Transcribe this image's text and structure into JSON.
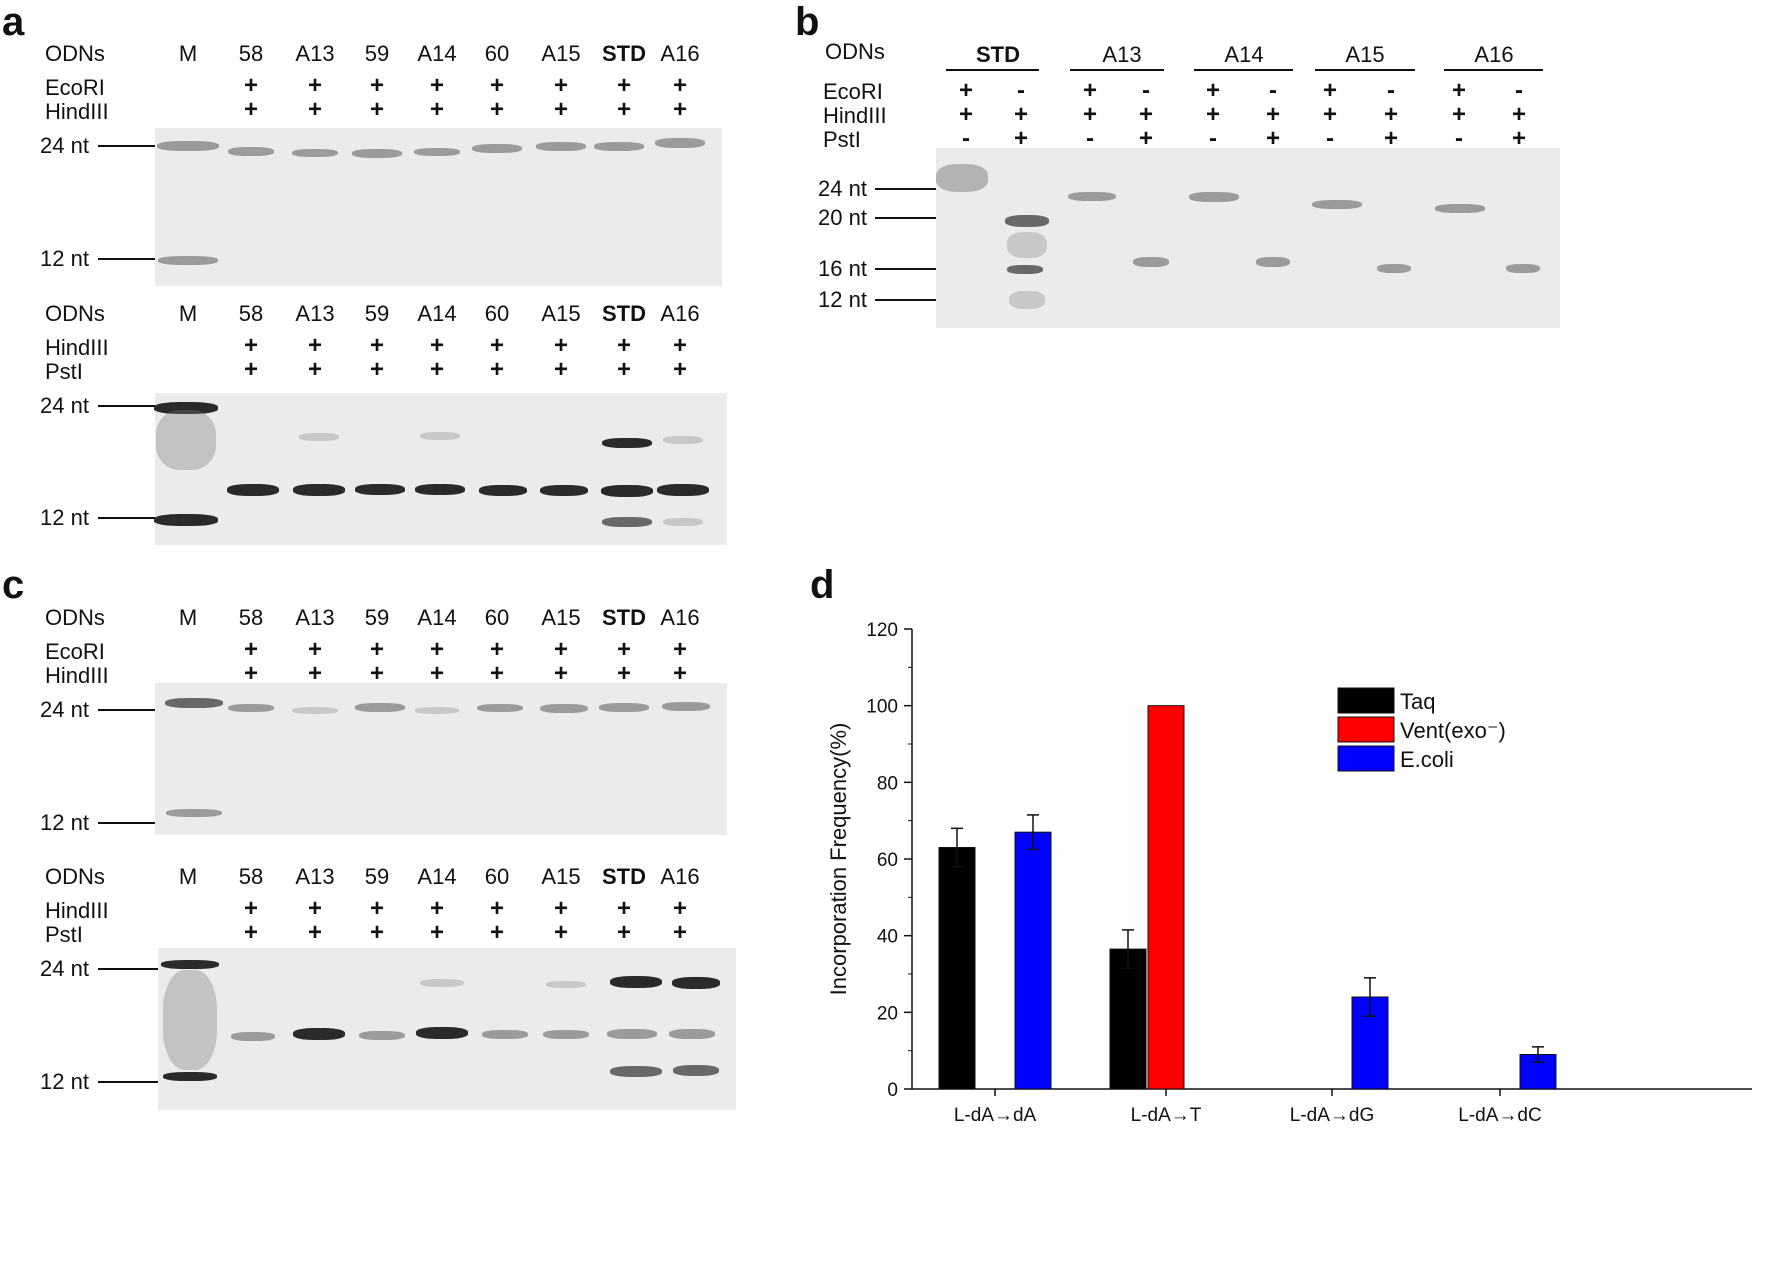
{
  "panel_labels": {
    "a": "a",
    "b": "b",
    "c": "c",
    "d": "d"
  },
  "gel_a_top": {
    "row_label": "ODNs",
    "lanes": [
      "M",
      "58",
      "A13",
      "59",
      "A14",
      "60",
      "A15",
      "STD",
      "A16"
    ],
    "enzymes": [
      {
        "name": "EcoRI",
        "signs": [
          "",
          "+",
          "+",
          "+",
          "+",
          "+",
          "+",
          "+",
          "+"
        ]
      },
      {
        "name": "HindIII",
        "signs": [
          "",
          "+",
          "+",
          "+",
          "+",
          "+",
          "+",
          "+",
          "+"
        ]
      }
    ],
    "markers": [
      "24 nt",
      "12 nt"
    ]
  },
  "gel_a_bottom": {
    "row_label": "ODNs",
    "lanes": [
      "M",
      "58",
      "A13",
      "59",
      "A14",
      "60",
      "A15",
      "STD",
      "A16"
    ],
    "enzymes": [
      {
        "name": "HindIII",
        "signs": [
          "",
          "+",
          "+",
          "+",
          "+",
          "+",
          "+",
          "+",
          "+"
        ]
      },
      {
        "name": "PstI",
        "signs": [
          "",
          "+",
          "+",
          "+",
          "+",
          "+",
          "+",
          "+",
          "+"
        ]
      }
    ],
    "markers": [
      "24 nt",
      "12 nt"
    ]
  },
  "gel_b": {
    "row_label": "ODNs",
    "groups": [
      "STD",
      "A13",
      "A14",
      "A15",
      "A16"
    ],
    "enzymes": [
      {
        "name": "EcoRI",
        "signs": [
          "+",
          "-",
          "+",
          "-",
          "+",
          "-",
          "+",
          "-",
          "+",
          "-"
        ]
      },
      {
        "name": "HindIII",
        "signs": [
          "+",
          "+",
          "+",
          "+",
          "+",
          "+",
          "+",
          "+",
          "+",
          "+"
        ]
      },
      {
        "name": "PstI",
        "signs": [
          "-",
          "+",
          "-",
          "+",
          "-",
          "+",
          "-",
          "+",
          "-",
          "+"
        ]
      }
    ],
    "markers": [
      "24 nt",
      "20 nt",
      "16 nt",
      "12 nt"
    ]
  },
  "gel_c_top": {
    "row_label": "ODNs",
    "lanes": [
      "M",
      "58",
      "A13",
      "59",
      "A14",
      "60",
      "A15",
      "STD",
      "A16"
    ],
    "enzymes": [
      {
        "name": "EcoRI",
        "signs": [
          "",
          "+",
          "+",
          "+",
          "+",
          "+",
          "+",
          "+",
          "+"
        ]
      },
      {
        "name": "HindIII",
        "signs": [
          "",
          "+",
          "+",
          "+",
          "+",
          "+",
          "+",
          "+",
          "+"
        ]
      }
    ],
    "markers": [
      "24 nt",
      "12 nt"
    ]
  },
  "gel_c_bottom": {
    "row_label": "ODNs",
    "lanes": [
      "M",
      "58",
      "A13",
      "59",
      "A14",
      "60",
      "A15",
      "STD",
      "A16"
    ],
    "enzymes": [
      {
        "name": "HindIII",
        "signs": [
          "",
          "+",
          "+",
          "+",
          "+",
          "+",
          "+",
          "+",
          "+"
        ]
      },
      {
        "name": "PstI",
        "signs": [
          "",
          "+",
          "+",
          "+",
          "+",
          "+",
          "+",
          "+",
          "+"
        ]
      }
    ],
    "markers": [
      "24 nt",
      "12 nt"
    ]
  },
  "chart_data": {
    "type": "bar",
    "categories": [
      "L-dA→dA",
      "L-dA→T",
      "L-dA→dG",
      "L-dA→dC"
    ],
    "series": [
      {
        "name": "Taq",
        "color": "#000000",
        "values": [
          63,
          36.5,
          0,
          0
        ],
        "errors": [
          5,
          5,
          0,
          0
        ]
      },
      {
        "name": "Vent(exo⁻)",
        "color": "#ff0000",
        "values": [
          0,
          100,
          0,
          0
        ],
        "errors": [
          0,
          0,
          0,
          0
        ]
      },
      {
        "name": "E.coli",
        "color": "#0000ff",
        "values": [
          67,
          0,
          24,
          9
        ],
        "errors": [
          4.5,
          0,
          5,
          2
        ]
      }
    ],
    "ylabel": "Incorporation Frequency(%)",
    "ylim": [
      0,
      120
    ],
    "yticks": [
      "0",
      "20",
      "40",
      "60",
      "80",
      "100",
      "120"
    ],
    "legend_position": "top-right"
  }
}
